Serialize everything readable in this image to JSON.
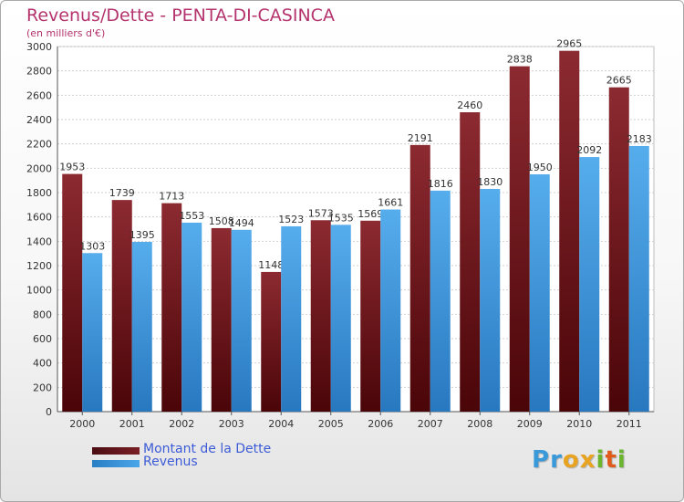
{
  "chart_data": {
    "type": "bar",
    "title": "Revenus/Dette - PENTA-DI-CASINCA",
    "subtitle": "(en milliers d'€)",
    "categories": [
      "2000",
      "2001",
      "2002",
      "2003",
      "2004",
      "2005",
      "2006",
      "2007",
      "2008",
      "2009",
      "2010",
      "2011"
    ],
    "series": [
      {
        "name": "Montant de la Dette",
        "color": "#7a1f26",
        "values": [
          1953,
          1739,
          1713,
          1508,
          1148,
          1573,
          1569,
          2191,
          2460,
          2838,
          2965,
          2665
        ]
      },
      {
        "name": "Revenus",
        "color": "#3d9be3",
        "values": [
          1303,
          1395,
          1553,
          1494,
          1523,
          1535,
          1661,
          1816,
          1830,
          1950,
          2092,
          2183
        ]
      }
    ],
    "ylim": [
      0,
      3000
    ],
    "yticks": [
      0,
      200,
      400,
      600,
      800,
      1000,
      1200,
      1400,
      1600,
      1800,
      2000,
      2200,
      2400,
      2600,
      2800,
      3000
    ],
    "grid": true,
    "legend_position": "bottom-left"
  },
  "logo": {
    "letters": [
      "P",
      "r",
      "o",
      "x",
      "i",
      "t",
      "i"
    ]
  },
  "colors": {
    "title": "#b5346e",
    "logo": [
      "#3a9ad9",
      "#3a9ad9",
      "#e8a420",
      "#e8a420",
      "#6ab42e",
      "#e05a1c",
      "#6ab42e"
    ]
  }
}
